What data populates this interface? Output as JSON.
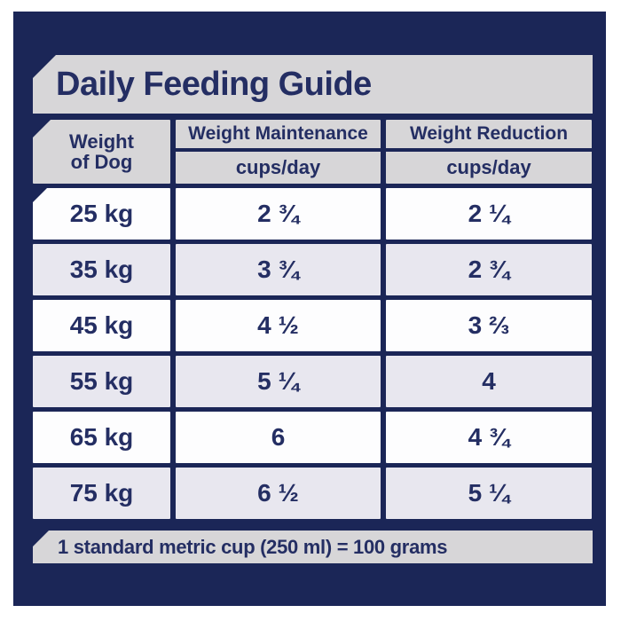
{
  "colors": {
    "navy": "#1b2657",
    "panel_gray": "#d7d6d8",
    "row_white": "#fdfdfe",
    "row_lavender": "#e8e7ef",
    "text_navy": "#242e63"
  },
  "title": "Daily Feeding Guide",
  "table": {
    "weight_of_dog": {
      "line1": "Weight",
      "line2": "of Dog"
    },
    "columns": [
      {
        "label": "Weight Maintenance",
        "sublabel": "cups/day"
      },
      {
        "label": "Weight Reduction",
        "sublabel": "cups/day"
      }
    ],
    "rows": [
      {
        "weight": "25 kg",
        "maintenance": "2 ¾",
        "reduction": "2 ¼"
      },
      {
        "weight": "35 kg",
        "maintenance": "3 ¾",
        "reduction": "2 ¾"
      },
      {
        "weight": "45 kg",
        "maintenance": "4 ½",
        "reduction": "3 ⅔"
      },
      {
        "weight": "55 kg",
        "maintenance": "5 ¼",
        "reduction": "4"
      },
      {
        "weight": "65 kg",
        "maintenance": "6",
        "reduction": "4 ¾"
      },
      {
        "weight": "75 kg",
        "maintenance": "6 ½",
        "reduction": "5 ¼"
      }
    ]
  },
  "footnote": "1 standard metric cup (250 ml) = 100 grams"
}
